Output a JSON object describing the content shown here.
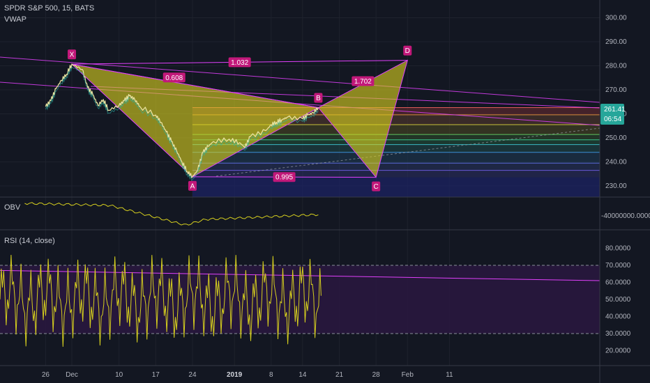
{
  "header": {
    "symbol": "SPDR S&P 500, 15, BATS",
    "vwap_label": "VWAP",
    "obv_label": "OBV",
    "rsi_label": "RSI (14, close)"
  },
  "price_badge": {
    "value": "261.41",
    "countdown": "06:54"
  },
  "colors": {
    "background": "#131722",
    "pattern_fill": "#d6cf1e",
    "pattern_line": "#e040fb",
    "label_box": "#c2187a",
    "price_badge": "#26a69a",
    "rsi_band": "#2a1840"
  },
  "pattern": {
    "points": [
      {
        "name": "X",
        "date": "Dec 1",
        "price": 280.7
      },
      {
        "name": "A",
        "date": "Dec 24",
        "price": 233.8
      },
      {
        "name": "B",
        "date": "Jan 17",
        "price": 262.6
      },
      {
        "name": "C",
        "date": "Jan 28",
        "price": 233.6
      },
      {
        "name": "D",
        "date": "Feb 3",
        "price": 282.3
      }
    ],
    "ratios": [
      {
        "label": "1.032",
        "between": "X-D"
      },
      {
        "label": "0.608",
        "between": "X-B"
      },
      {
        "label": "1.702",
        "between": "B-D"
      },
      {
        "label": "0.995",
        "between": "A-C"
      }
    ]
  },
  "chart_data": [
    {
      "type": "line",
      "title": "SPDR S&P 500, 15, BATS",
      "series": [
        {
          "name": "VWAP",
          "values": []
        }
      ],
      "x_ticks": [
        "26",
        "Dec",
        "10",
        "17",
        "24",
        "2019",
        "8",
        "14",
        "21",
        "28",
        "Feb",
        "11"
      ],
      "y_ticks": [
        "230.00",
        "240.00",
        "250.00",
        "260.00",
        "270.00",
        "280.00",
        "290.00",
        "300.00"
      ],
      "ylim": [
        225,
        303
      ],
      "price_path": [
        [
          "Nov 26",
          263.0
        ],
        [
          "Nov 27",
          265.5
        ],
        [
          "Nov 28",
          270.5
        ],
        [
          "Nov 29",
          274.0
        ],
        [
          "Nov 30",
          276.5
        ],
        [
          "Dec 1",
          280.7
        ],
        [
          "Dec 3",
          278.5
        ],
        [
          "Dec 4",
          271.0
        ],
        [
          "Dec 5",
          268.0
        ],
        [
          "Dec 6",
          263.5
        ],
        [
          "Dec 7",
          266.0
        ],
        [
          "Dec 8",
          261.5
        ],
        [
          "Dec 10",
          263.5
        ],
        [
          "Dec 11",
          265.5
        ],
        [
          "Dec 12",
          267.5
        ],
        [
          "Dec 13",
          266.0
        ],
        [
          "Dec 14",
          263.0
        ],
        [
          "Dec 17",
          259.5
        ],
        [
          "Dec 18",
          256.5
        ],
        [
          "Dec 19",
          252.5
        ],
        [
          "Dec 20",
          248.5
        ],
        [
          "Dec 21",
          244.5
        ],
        [
          "Dec 22",
          240.0
        ],
        [
          "Dec 23",
          236.0
        ],
        [
          "Dec 24",
          233.8
        ],
        [
          "Dec 25",
          236.5
        ],
        [
          "Dec 26",
          244.0
        ],
        [
          "Dec 27",
          246.5
        ],
        [
          "Dec 28",
          248.5
        ],
        [
          "Dec 31",
          249.5
        ],
        [
          "Jan 2",
          248.0
        ],
        [
          "Jan 3",
          246.0
        ],
        [
          "Jan 4",
          250.5
        ],
        [
          "Jan 7",
          253.0
        ],
        [
          "Jan 8",
          255.5
        ],
        [
          "Jan 9",
          256.5
        ],
        [
          "Jan 10",
          257.5
        ],
        [
          "Jan 11",
          258.5
        ],
        [
          "Jan 14",
          258.0
        ],
        [
          "Jan 15",
          259.5
        ],
        [
          "Jan 16",
          260.5
        ],
        [
          "Jan 17",
          262.6
        ]
      ],
      "fib_levels": [
        262.6,
        259.6,
        255.5,
        251.4,
        249.2,
        247.2,
        244.0,
        239.5,
        236.5,
        233.6
      ]
    },
    {
      "type": "line",
      "title": "OBV",
      "y_ticks": [
        "-40000000.0000"
      ]
    },
    {
      "type": "line",
      "title": "RSI (14, close)",
      "y_ticks": [
        "20.0000",
        "30.0000",
        "40.0000",
        "50.0000",
        "60.0000",
        "70.0000",
        "80.0000"
      ],
      "ylim": [
        10,
        88
      ],
      "band": [
        30,
        70
      ]
    }
  ]
}
